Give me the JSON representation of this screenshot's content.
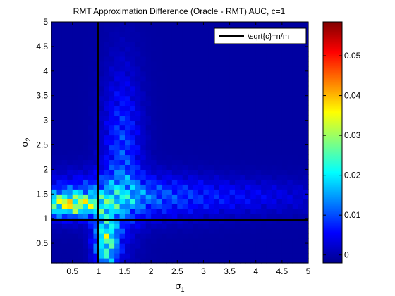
{
  "chart_data": {
    "type": "heatmap",
    "title": "RMT Approximation Difference (Oracle - RMT) AUC, c=1",
    "xlabel": "σ",
    "xlabel_sub": "1",
    "ylabel": "σ",
    "ylabel_sub": "2",
    "xlim": [
      0.1,
      5
    ],
    "ylim": [
      0.1,
      5
    ],
    "xticks": [
      0.5,
      1,
      1.5,
      2,
      2.5,
      3,
      3.5,
      4,
      4.5,
      5
    ],
    "xtick_labels": [
      "0.5",
      "1",
      "1.5",
      "2",
      "2.5",
      "3",
      "3.5",
      "4",
      "4.5",
      "5"
    ],
    "yticks": [
      0.5,
      1,
      1.5,
      2,
      2.5,
      3,
      3.5,
      4,
      4.5,
      5
    ],
    "ytick_labels": [
      "0.5",
      "1",
      "1.5",
      "2",
      "2.5",
      "3",
      "3.5",
      "4",
      "4.5",
      "5"
    ],
    "colormap": "jet",
    "clim": [
      -0.002,
      0.0585
    ],
    "colorbar_ticks": [
      0,
      0.01,
      0.02,
      0.03,
      0.04,
      0.05
    ],
    "colorbar_tick_labels": [
      "0",
      "0.01",
      "0.02",
      "0.03",
      "0.04",
      "0.05"
    ],
    "reference_lines": {
      "x": 1,
      "y": 1,
      "color": "#000000"
    },
    "legend": {
      "label": "\\sqrt{c}=n/m",
      "placement": "top-right"
    },
    "grid": false
  }
}
